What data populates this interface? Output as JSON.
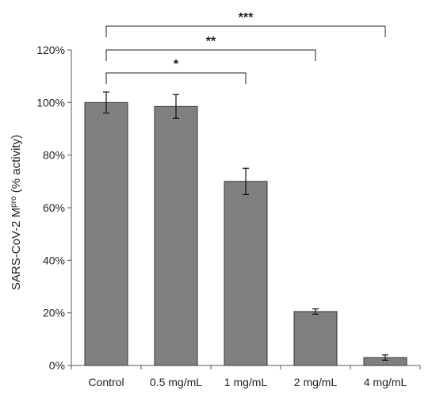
{
  "chart_data": {
    "type": "bar",
    "categories": [
      "Control",
      "0.5 mg/mL",
      "1 mg/mL",
      "2 mg/mL",
      "4 mg/mL"
    ],
    "values": [
      100,
      98.5,
      70,
      20.5,
      3
    ],
    "errors": [
      4,
      4.5,
      5,
      1,
      1
    ],
    "ylim": [
      0,
      120
    ],
    "yticks": [
      "0%",
      "20%",
      "40%",
      "60%",
      "80%",
      "100%",
      "120%"
    ],
    "ylabel": {
      "main": "SARS-CoV-2 M",
      "sup": "pro",
      "rest": " (% activity)"
    },
    "bar_color": "#808080",
    "grid": false,
    "significance": [
      {
        "from": 0,
        "to": 2,
        "label": "*"
      },
      {
        "from": 0,
        "to": 3,
        "label": "**"
      },
      {
        "from": 0,
        "to": 4,
        "label": "***"
      }
    ]
  }
}
